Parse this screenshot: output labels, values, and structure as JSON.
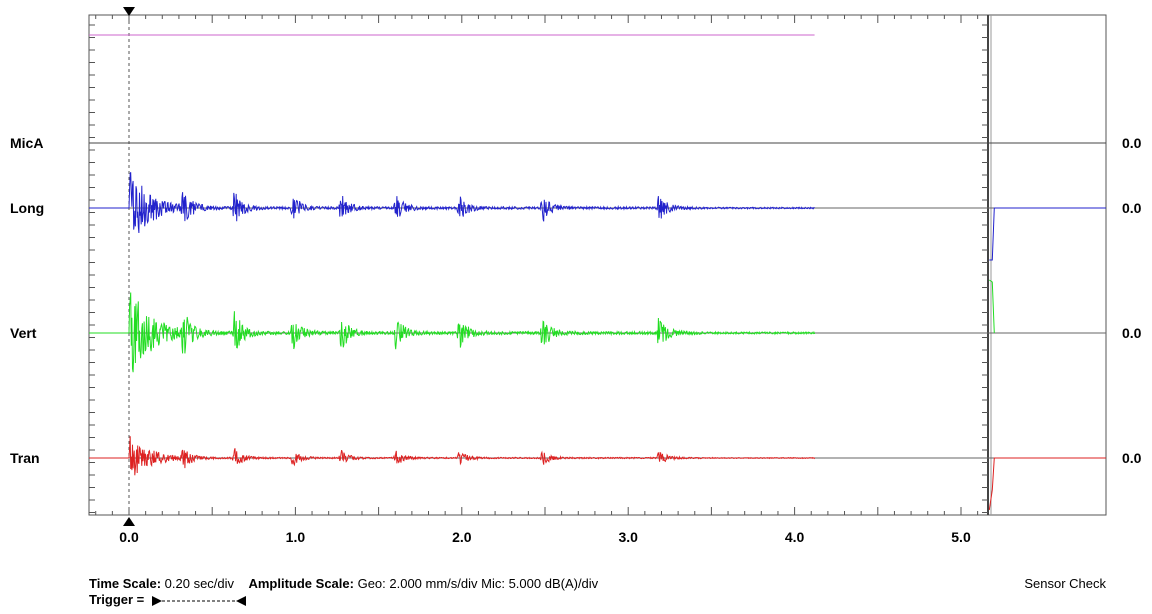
{
  "chart_data": {
    "type": "line",
    "channels": [
      {
        "name": "MicA",
        "color": "#000000",
        "value_label": "0.0"
      },
      {
        "name": "Long",
        "color": "#2222cc",
        "value_label": "0.0"
      },
      {
        "name": "Vert",
        "color": "#22dd22",
        "value_label": "0.0"
      },
      {
        "name": "Tran",
        "color": "#dd2222",
        "value_label": "0.0"
      }
    ],
    "x_ticks": [
      "0.0",
      "1.0",
      "2.0",
      "3.0",
      "4.0",
      "5.0"
    ],
    "xlim": [
      -0.2,
      5.85
    ],
    "record_end_s": 4.12,
    "trigger_time_s": 0.0,
    "bursts_s": [
      0.0,
      0.32,
      0.63,
      0.98,
      1.27,
      1.6,
      1.98,
      2.48,
      3.18
    ],
    "mic_level_color": "#cc66cc",
    "sensor_check_x_s": 5.17
  },
  "footer": {
    "time_scale_label": "Time Scale:",
    "time_scale_value": "0.20 sec/div",
    "amp_scale_label": "Amplitude Scale:",
    "amp_scale_value": "Geo: 2.000 mm/s/div Mic: 5.000 dB(A)/div",
    "trigger_label": "Trigger =",
    "sensor_check": "Sensor Check"
  }
}
